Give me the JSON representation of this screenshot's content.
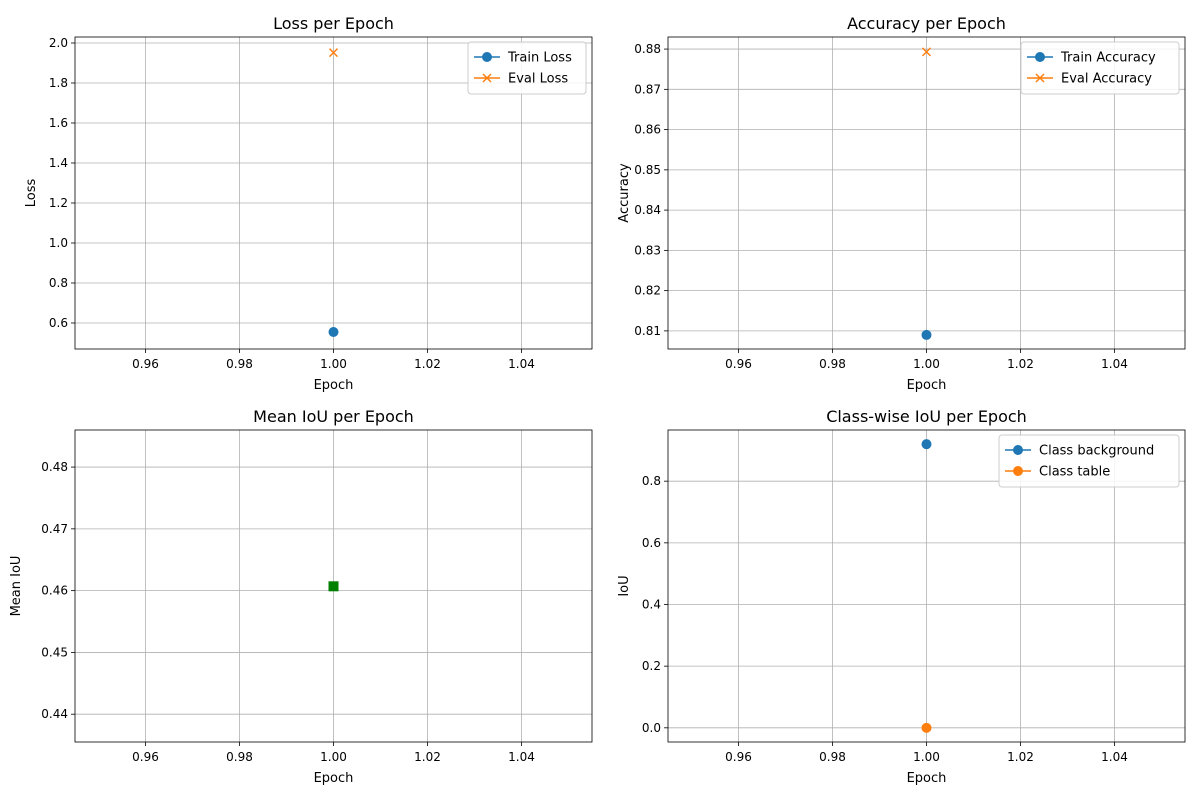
{
  "colors": {
    "blue": "#1f77b4",
    "orange": "#ff7f0e",
    "green": "#008000",
    "grid": "#b0b0b0"
  },
  "chart_data": [
    {
      "type": "line",
      "title": "Loss per Epoch",
      "xlabel": "Epoch",
      "ylabel": "Loss",
      "xlim": [
        0.945,
        1.055
      ],
      "ylim": [
        0.47,
        2.03
      ],
      "xticks": [
        "0.96",
        "0.98",
        "1.00",
        "1.02",
        "1.04"
      ],
      "yticks": [
        "0.6",
        "0.8",
        "1.0",
        "1.2",
        "1.4",
        "1.6",
        "1.8",
        "2.0"
      ],
      "grid": true,
      "legend": "upper-right",
      "series": [
        {
          "name": "Train Loss",
          "marker": "circle",
          "color": "#1f77b4",
          "x": [
            1.0
          ],
          "y": [
            0.555
          ]
        },
        {
          "name": "Eval Loss",
          "marker": "x",
          "color": "#ff7f0e",
          "x": [
            1.0
          ],
          "y": [
            1.952
          ]
        }
      ]
    },
    {
      "type": "line",
      "title": "Accuracy per Epoch",
      "xlabel": "Epoch",
      "ylabel": "Accuracy",
      "xlim": [
        0.945,
        1.055
      ],
      "ylim": [
        0.8055,
        0.883
      ],
      "xticks": [
        "0.96",
        "0.98",
        "1.00",
        "1.02",
        "1.04"
      ],
      "yticks": [
        "0.81",
        "0.82",
        "0.83",
        "0.84",
        "0.85",
        "0.86",
        "0.87",
        "0.88"
      ],
      "grid": true,
      "legend": "upper-right",
      "series": [
        {
          "name": "Train Accuracy",
          "marker": "circle",
          "color": "#1f77b4",
          "x": [
            1.0
          ],
          "y": [
            0.809
          ]
        },
        {
          "name": "Eval Accuracy",
          "marker": "x",
          "color": "#ff7f0e",
          "x": [
            1.0
          ],
          "y": [
            0.8793
          ]
        }
      ]
    },
    {
      "type": "line",
      "title": "Mean IoU per Epoch",
      "xlabel": "Epoch",
      "ylabel": "Mean IoU",
      "xlim": [
        0.945,
        1.055
      ],
      "ylim": [
        0.4355,
        0.486
      ],
      "xticks": [
        "0.96",
        "0.98",
        "1.00",
        "1.02",
        "1.04"
      ],
      "yticks": [
        "0.44",
        "0.45",
        "0.46",
        "0.47",
        "0.48"
      ],
      "grid": true,
      "series": [
        {
          "marker": "square",
          "color": "#008000",
          "x": [
            1.0
          ],
          "y": [
            0.4607
          ]
        }
      ]
    },
    {
      "type": "line",
      "title": "Class-wise IoU per Epoch",
      "xlabel": "Epoch",
      "ylabel": "IoU",
      "xlim": [
        0.945,
        1.055
      ],
      "ylim": [
        -0.046,
        0.966
      ],
      "xticks": [
        "0.96",
        "0.98",
        "1.00",
        "1.02",
        "1.04"
      ],
      "yticks": [
        "0.0",
        "0.2",
        "0.4",
        "0.6",
        "0.8"
      ],
      "grid": true,
      "legend": "upper-right",
      "series": [
        {
          "name": "Class background",
          "marker": "circle",
          "color": "#1f77b4",
          "x": [
            1.0
          ],
          "y": [
            0.92
          ]
        },
        {
          "name": "Class table",
          "marker": "circle",
          "color": "#ff7f0e",
          "x": [
            1.0
          ],
          "y": [
            0.0
          ]
        }
      ]
    }
  ]
}
